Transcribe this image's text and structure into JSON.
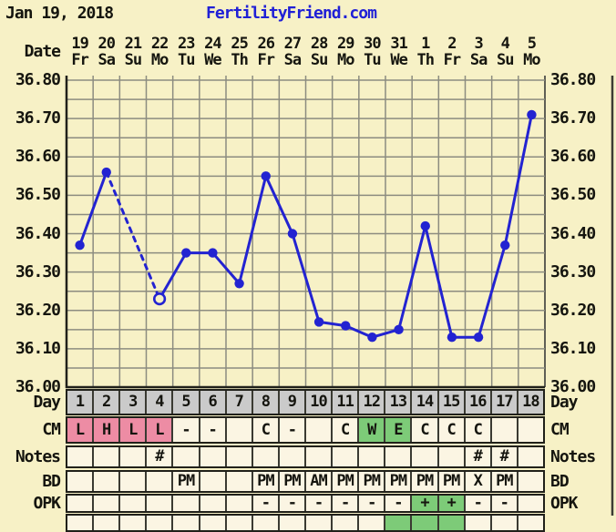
{
  "page": {
    "title_date": "Jan 19, 2018",
    "site_link": "FertilityFriend.com"
  },
  "colors": {
    "background": "#f7f1c6",
    "cell_cream": "#fbf5e3",
    "day_row_gray": "#cacaca",
    "cm_pink": "#ed8ca4",
    "highlight_green": "#7dcb78",
    "line_blue": "#2323d1",
    "grid_gray": "#8c8c80",
    "border_dark": "#20201a",
    "link_blue": "#2020d6"
  },
  "date_header": {
    "label": "Date",
    "dates": [
      "19",
      "20",
      "21",
      "22",
      "23",
      "24",
      "25",
      "26",
      "27",
      "28",
      "29",
      "30",
      "31",
      "1",
      "2",
      "3",
      "4",
      "5"
    ],
    "weekdays": [
      "Fr",
      "Sa",
      "Su",
      "Mo",
      "Tu",
      "We",
      "Th",
      "Fr",
      "Sa",
      "Su",
      "Mo",
      "Tu",
      "We",
      "Th",
      "Fr",
      "Sa",
      "Su",
      "Mo"
    ]
  },
  "chart_data": {
    "type": "line",
    "title": "",
    "xlabel": "",
    "ylabel": "",
    "ylim": [
      36.0,
      36.8
    ],
    "grid_step": 0.05,
    "grid": true,
    "legend_position": "none",
    "ytick_labels": [
      "36.80",
      "36.70",
      "36.60",
      "36.50",
      "36.40",
      "36.30",
      "36.20",
      "36.10",
      "36.00"
    ],
    "x_days": [
      1,
      2,
      3,
      4,
      5,
      6,
      7,
      8,
      9,
      10,
      11,
      12,
      13,
      14,
      15,
      16,
      17,
      18
    ],
    "series": [
      {
        "name": "bbt-temperature",
        "values": [
          36.37,
          36.56,
          null,
          36.23,
          36.35,
          36.35,
          36.27,
          36.55,
          36.4,
          36.17,
          36.16,
          36.13,
          36.15,
          36.42,
          36.13,
          36.13,
          36.37,
          36.71
        ]
      }
    ],
    "missing_day": 3,
    "open_marker_day": 4,
    "dashed_segment_days": [
      2,
      4
    ]
  },
  "table": {
    "rows": [
      {
        "key": "day",
        "label": "Day",
        "bg_all": "gray",
        "cells": [
          "1",
          "2",
          "3",
          "4",
          "5",
          "6",
          "7",
          "8",
          "9",
          "10",
          "11",
          "12",
          "13",
          "14",
          "15",
          "16",
          "17",
          "18"
        ]
      },
      {
        "key": "cm",
        "label": "CM",
        "cells": [
          "L",
          "H",
          "L",
          "L",
          "-",
          "-",
          "",
          "C",
          "-",
          "",
          "C",
          "W",
          "E",
          "C",
          "C",
          "C",
          "",
          ""
        ],
        "bgs": [
          "pink",
          "pink",
          "pink",
          "pink",
          "",
          "",
          "",
          "",
          "",
          "",
          "",
          "green",
          "green",
          "",
          "",
          "",
          "",
          ""
        ]
      },
      {
        "key": "notes",
        "label": "Notes",
        "cells": [
          "",
          "",
          "",
          "#",
          "",
          "",
          "",
          "",
          "",
          "",
          "",
          "",
          "",
          "",
          "",
          "#",
          "#",
          ""
        ]
      },
      {
        "key": "bd",
        "label": "BD",
        "cells": [
          "",
          "",
          "",
          "",
          "PM",
          "",
          "",
          "PM",
          "PM",
          "AM",
          "PM",
          "PM",
          "PM",
          "PM",
          "PM",
          "X",
          "PM",
          ""
        ]
      },
      {
        "key": "opk",
        "label": "OPK",
        "cells": [
          "",
          "",
          "",
          "",
          "",
          "",
          "",
          "-",
          "-",
          "-",
          "-",
          "-",
          "-",
          "+",
          "+",
          "-",
          "-",
          ""
        ],
        "bgs": [
          "",
          "",
          "",
          "",
          "",
          "",
          "",
          "",
          "",
          "",
          "",
          "",
          "",
          "green",
          "green",
          "",
          "",
          ""
        ]
      },
      {
        "key": "next",
        "label": "",
        "cells": [
          "",
          "",
          "",
          "",
          "",
          "",
          "",
          "",
          "",
          "",
          "",
          "",
          "",
          "",
          "",
          "",
          "",
          ""
        ],
        "bgs": [
          "",
          "",
          "",
          "",
          "",
          "",
          "",
          "",
          "",
          "",
          "",
          "",
          "green",
          "green",
          "green",
          "",
          "",
          ""
        ]
      }
    ]
  }
}
